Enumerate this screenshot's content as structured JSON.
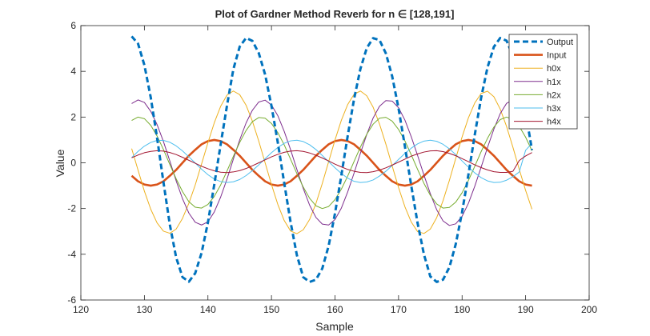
{
  "chart_data": {
    "type": "line",
    "title": "Plot of Gardner Method Reverb for n ∈ [128,191]",
    "xlabel": "Sample",
    "ylabel": "Value",
    "xlim": [
      120,
      200
    ],
    "ylim": [
      -6,
      6
    ],
    "xticks": [
      "120",
      "130",
      "140",
      "150",
      "160",
      "170",
      "180",
      "190",
      "200"
    ],
    "yticks": [
      "-6",
      "-4",
      "-2",
      "0",
      "2",
      "4",
      "6"
    ],
    "grid": false,
    "legend_position": "top-right",
    "x": [
      128,
      129,
      130,
      131,
      132,
      133,
      134,
      135,
      136,
      137,
      138,
      139,
      140,
      141,
      142,
      143,
      144,
      145,
      146,
      147,
      148,
      149,
      150,
      151,
      152,
      153,
      154,
      155,
      156,
      157,
      158,
      159,
      160,
      161,
      162,
      163,
      164,
      165,
      166,
      167,
      168,
      169,
      170,
      171,
      172,
      173,
      174,
      175,
      176,
      177,
      178,
      179,
      180,
      181,
      182,
      183,
      184,
      185,
      186,
      187,
      188,
      189,
      190,
      191
    ],
    "series": [
      {
        "name": "Output",
        "color": "#0072BD",
        "dash": "dashed",
        "width": 3,
        "values": [
          5.53,
          5.21,
          4.27,
          2.86,
          1.09,
          -0.85,
          -2.7,
          -4.14,
          -5.0,
          -5.2,
          -4.83,
          -3.94,
          -2.61,
          -0.95,
          0.8,
          2.5,
          4.09,
          5.08,
          5.46,
          5.33,
          4.8,
          3.86,
          2.49,
          0.88,
          -0.87,
          -2.58,
          -4.04,
          -5.0,
          -5.21,
          -5.11,
          -4.62,
          -3.63,
          -2.21,
          -0.55,
          1.18,
          2.79,
          4.11,
          5.02,
          5.45,
          5.37,
          4.79,
          3.78,
          2.38,
          0.72,
          -1.0,
          -2.64,
          -4.01,
          -4.97,
          -5.21,
          -5.11,
          -4.57,
          -3.56,
          -2.16,
          -0.51,
          1.23,
          2.85,
          4.17,
          5.07,
          5.46,
          5.34,
          4.68,
          3.62,
          2.21,
          0.56
        ]
      },
      {
        "name": "Input",
        "color": "#D95319",
        "dash": "solid",
        "width": 2.6,
        "values": [
          -0.57,
          -0.81,
          -0.95,
          -1.0,
          -0.95,
          -0.81,
          -0.57,
          -0.31,
          0.0,
          0.31,
          0.57,
          0.81,
          0.95,
          1.0,
          0.95,
          0.81,
          0.57,
          0.31,
          0.0,
          -0.31,
          -0.57,
          -0.81,
          -0.95,
          -1.0,
          -0.95,
          -0.81,
          -0.57,
          -0.31,
          0.0,
          0.31,
          0.57,
          0.81,
          0.95,
          1.0,
          0.95,
          0.81,
          0.57,
          0.31,
          0.0,
          -0.31,
          -0.57,
          -0.81,
          -0.95,
          -1.0,
          -0.95,
          -0.81,
          -0.57,
          -0.31,
          0.0,
          0.31,
          0.57,
          0.81,
          0.95,
          1.0,
          0.95,
          0.81,
          0.57,
          0.31,
          0.0,
          -0.31,
          -0.57,
          -0.81,
          -0.95,
          -1.0
        ]
      },
      {
        "name": "h0x",
        "color": "#EDB120",
        "dash": "solid",
        "width": 1,
        "values": [
          0.62,
          -0.32,
          -1.24,
          -2.03,
          -2.63,
          -2.99,
          -3.08,
          -2.9,
          -2.43,
          -1.77,
          -0.97,
          -0.05,
          0.88,
          1.75,
          2.47,
          2.96,
          3.14,
          2.98,
          2.52,
          1.82,
          0.95,
          0.0,
          -0.95,
          -1.82,
          -2.52,
          -2.98,
          -3.1,
          -2.93,
          -2.48,
          -1.78,
          -0.9,
          0.05,
          1.0,
          1.86,
          2.55,
          3.0,
          3.14,
          2.93,
          2.43,
          1.7,
          0.82,
          -0.14,
          -1.08,
          -1.92,
          -2.59,
          -3.01,
          -3.09,
          -2.9,
          -2.4,
          -1.66,
          -0.77,
          0.19,
          1.13,
          1.97,
          2.62,
          3.03,
          3.13,
          2.89,
          2.35,
          1.59,
          0.68,
          -0.29,
          -1.21,
          -2.03
        ]
      },
      {
        "name": "h1x",
        "color": "#7E2F8E",
        "dash": "solid",
        "width": 1,
        "values": [
          2.59,
          2.75,
          2.64,
          2.25,
          1.67,
          0.93,
          0.08,
          -0.79,
          -1.57,
          -2.2,
          -2.6,
          -2.72,
          -2.58,
          -2.15,
          -1.5,
          -0.71,
          0.16,
          1.0,
          1.74,
          2.3,
          2.66,
          2.74,
          2.53,
          2.06,
          1.38,
          0.58,
          -0.29,
          -1.12,
          -1.85,
          -2.39,
          -2.68,
          -2.72,
          -2.48,
          -1.98,
          -1.27,
          -0.45,
          0.42,
          1.24,
          1.96,
          2.47,
          2.72,
          2.7,
          2.41,
          1.87,
          1.14,
          0.32,
          -0.54,
          -1.35,
          -2.05,
          -2.54,
          -2.74,
          -2.67,
          -2.34,
          -1.77,
          -1.02,
          -0.19,
          0.67,
          1.47,
          2.15,
          2.6,
          2.75,
          2.62,
          2.25,
          1.65
        ]
      },
      {
        "name": "h2x",
        "color": "#77AC30",
        "dash": "solid",
        "width": 1,
        "values": [
          1.85,
          2.0,
          1.93,
          1.64,
          1.17,
          0.58,
          -0.07,
          -0.7,
          -1.26,
          -1.7,
          -1.94,
          -1.98,
          -1.82,
          -1.47,
          -0.97,
          -0.36,
          0.28,
          0.89,
          1.41,
          1.8,
          1.98,
          1.95,
          1.72,
          1.32,
          0.79,
          0.16,
          -0.47,
          -1.06,
          -1.55,
          -1.88,
          -2.0,
          -1.91,
          -1.61,
          -1.15,
          -0.58,
          0.06,
          0.69,
          1.25,
          1.69,
          1.95,
          1.99,
          1.82,
          1.46,
          0.96,
          0.35,
          -0.29,
          -0.9,
          -1.42,
          -1.8,
          -1.98,
          -1.95,
          -1.72,
          -1.31,
          -0.77,
          -0.15,
          0.49,
          1.07,
          1.56,
          1.89,
          2.0,
          1.9,
          1.59,
          1.12,
          0.53
        ]
      },
      {
        "name": "h3x",
        "color": "#4DBEEE",
        "dash": "solid",
        "width": 1,
        "values": [
          0.23,
          0.5,
          0.73,
          0.89,
          0.98,
          0.98,
          0.9,
          0.74,
          0.52,
          0.26,
          -0.01,
          -0.28,
          -0.52,
          -0.71,
          -0.82,
          -0.86,
          -0.83,
          -0.73,
          -0.56,
          -0.34,
          -0.09,
          0.18,
          0.44,
          0.67,
          0.85,
          0.96,
          0.99,
          0.93,
          0.79,
          0.58,
          0.32,
          0.05,
          -0.22,
          -0.47,
          -0.67,
          -0.81,
          -0.86,
          -0.84,
          -0.75,
          -0.58,
          -0.37,
          -0.12,
          0.15,
          0.41,
          0.64,
          0.83,
          0.95,
          0.99,
          0.94,
          0.81,
          0.61,
          0.36,
          0.08,
          -0.19,
          -0.44,
          -0.65,
          -0.79,
          -0.86,
          -0.85,
          -0.76,
          -0.61,
          -0.4,
          0.55,
          0.85
        ]
      },
      {
        "name": "h4x",
        "color": "#A2142F",
        "dash": "solid",
        "width": 1,
        "values": [
          0.22,
          0.34,
          0.44,
          0.5,
          0.53,
          0.51,
          0.45,
          0.36,
          0.24,
          0.11,
          -0.02,
          -0.15,
          -0.26,
          -0.35,
          -0.41,
          -0.43,
          -0.4,
          -0.34,
          -0.25,
          -0.13,
          0.0,
          0.13,
          0.26,
          0.37,
          0.46,
          0.51,
          0.53,
          0.5,
          0.43,
          0.33,
          0.21,
          0.08,
          -0.06,
          -0.18,
          -0.29,
          -0.37,
          -0.42,
          -0.43,
          -0.39,
          -0.32,
          -0.22,
          -0.1,
          0.03,
          0.16,
          0.29,
          0.39,
          0.47,
          0.52,
          0.53,
          0.49,
          0.41,
          0.31,
          0.18,
          0.05,
          -0.09,
          -0.21,
          -0.31,
          -0.39,
          -0.42,
          -0.42,
          -0.37,
          0.1,
          0.3,
          0.45
        ]
      }
    ]
  }
}
